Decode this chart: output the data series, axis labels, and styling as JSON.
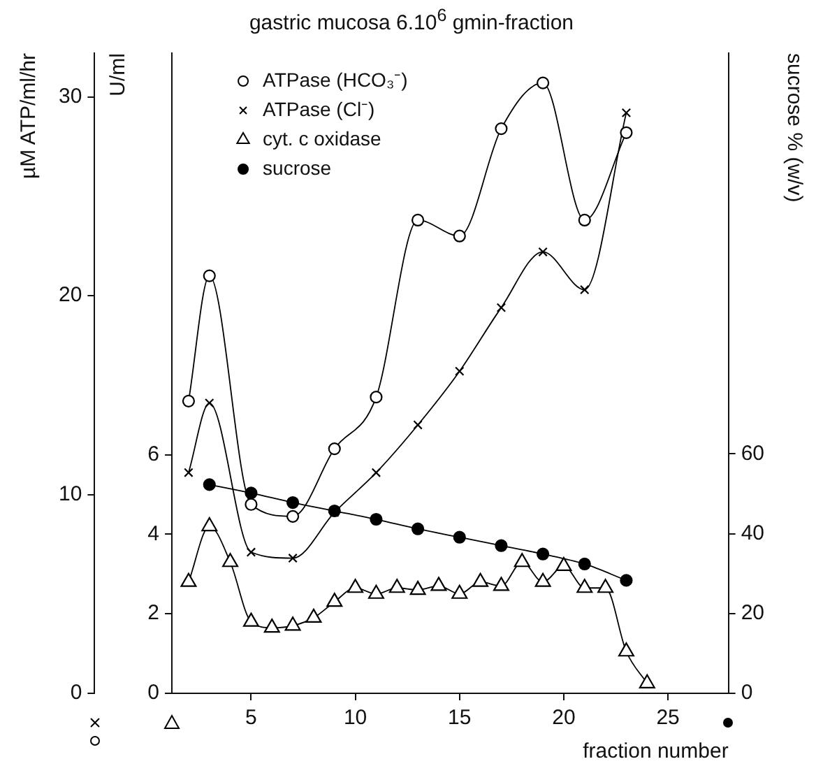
{
  "chart_data": {
    "type": "line",
    "title": "gastric mucosa 6.10$^{6}$ gmin-fraction",
    "xlabel": "fraction number",
    "ylabel": "µM ATP/ml/hr",
    "y3label": "U/ml",
    "y2label": "sucrose % (w/v)",
    "xlim": [
      1.2,
      27.9
    ],
    "xticks": [
      5,
      10,
      15,
      20,
      25
    ],
    "ylim": [
      0,
      32.2
    ],
    "yticks": [
      0,
      10,
      20,
      30
    ],
    "y3lim": [
      0,
      16.1
    ],
    "y3ticks": [
      0,
      2,
      4,
      6
    ],
    "y2lim": [
      0,
      160.4
    ],
    "y2ticks": [
      0,
      20,
      40,
      60
    ],
    "grid": false,
    "legend": "top left",
    "series": [
      {
        "name": "ATPase (HCO₃⁻)",
        "color": "#000000",
        "marker": "circle",
        "axis": "y",
        "x": [
          2,
          3,
          5,
          7,
          9,
          11,
          13,
          15,
          17,
          19,
          21,
          23
        ],
        "values": [
          14.7,
          21.0,
          9.5,
          8.9,
          12.3,
          14.9,
          23.8,
          23.0,
          28.4,
          30.7,
          23.8,
          28.2
        ]
      },
      {
        "name": "ATPase (Cl⁻)",
        "color": "#000000",
        "marker": "cross",
        "axis": "y",
        "x": [
          2,
          3,
          5,
          7,
          9,
          11,
          13,
          15,
          17,
          19,
          21,
          23
        ],
        "values": [
          11.1,
          14.6,
          7.1,
          6.8,
          9.1,
          11.1,
          13.5,
          16.2,
          19.4,
          22.2,
          20.3,
          29.2
        ]
      },
      {
        "name": "cyt. c oxidase",
        "color": "#000000",
        "marker": "triangle",
        "axis": "y3",
        "x": [
          2,
          3,
          4,
          5,
          6,
          7,
          8,
          9,
          10,
          11,
          12,
          13,
          14,
          15,
          16,
          17,
          18,
          19,
          20,
          21,
          22,
          23,
          24
        ],
        "values": [
          2.8,
          4.2,
          3.3,
          1.8,
          1.65,
          1.7,
          1.9,
          2.3,
          2.65,
          2.5,
          2.65,
          2.6,
          2.7,
          2.5,
          2.8,
          2.7,
          3.3,
          2.8,
          3.2,
          2.65,
          2.65,
          1.05,
          0.25
        ]
      },
      {
        "name": "sucrose",
        "color": "#000000",
        "marker": "dot",
        "axis": "y2",
        "x": [
          3,
          5,
          7,
          9,
          11,
          13,
          15,
          17,
          19,
          21,
          23
        ],
        "values": [
          52.3,
          50.2,
          47.8,
          45.7,
          43.6,
          41.2,
          39.1,
          37.0,
          34.9,
          32.4,
          28.3
        ]
      }
    ]
  }
}
